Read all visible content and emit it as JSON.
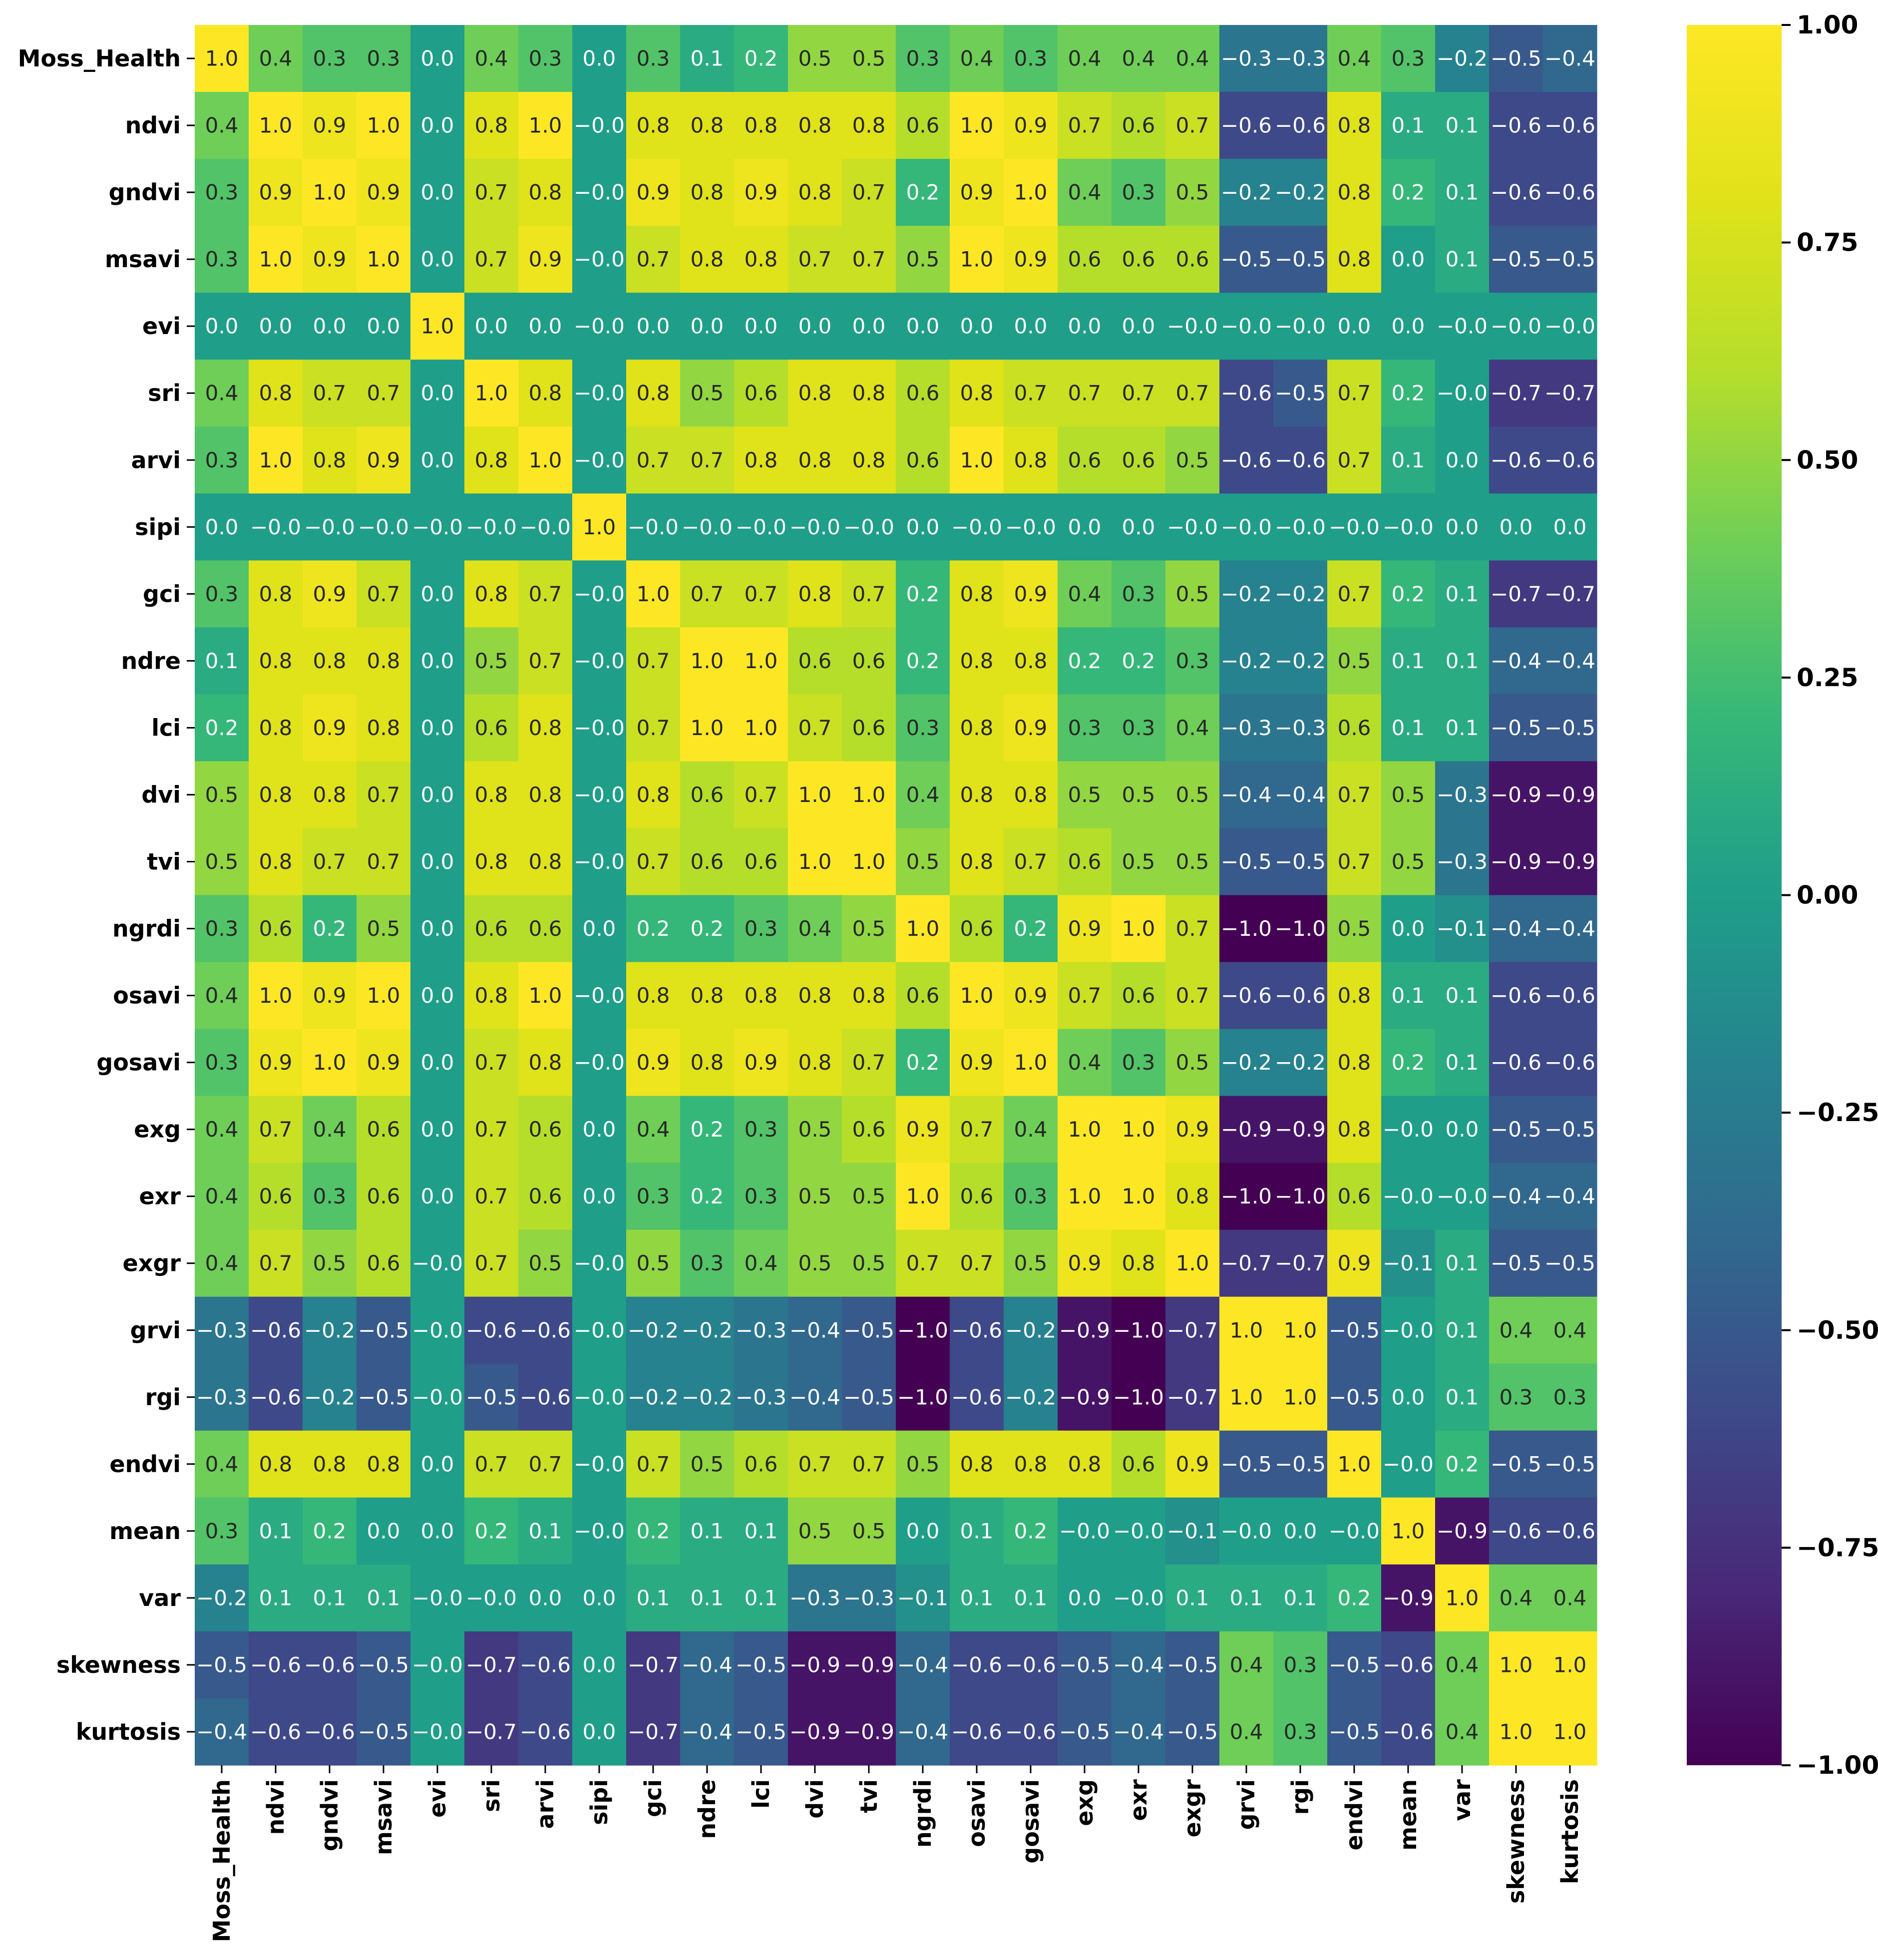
{
  "chart_data": {
    "type": "heatmap",
    "title": "",
    "colormap": "viridis",
    "vmin": -1.0,
    "vmax": 1.0,
    "labels": [
      "Moss_Health",
      "ndvi",
      "gndvi",
      "msavi",
      "evi",
      "sri",
      "arvi",
      "sipi",
      "gci",
      "ndre",
      "lci",
      "dvi",
      "tvi",
      "ngrdi",
      "osavi",
      "gosavi",
      "exg",
      "exr",
      "exgr",
      "grvi",
      "rgi",
      "endvi",
      "mean",
      "var",
      "skewness",
      "kurtosis"
    ],
    "values": [
      [
        1.0,
        0.4,
        0.3,
        0.3,
        0.0,
        0.4,
        0.3,
        0.0,
        0.3,
        0.1,
        0.2,
        0.5,
        0.5,
        0.3,
        0.4,
        0.3,
        0.4,
        0.4,
        0.4,
        -0.3,
        -0.3,
        0.4,
        0.3,
        -0.2,
        -0.5,
        -0.4
      ],
      [
        0.4,
        1.0,
        0.9,
        1.0,
        0.0,
        0.8,
        1.0,
        -0.0,
        0.8,
        0.8,
        0.8,
        0.8,
        0.8,
        0.6,
        1.0,
        0.9,
        0.7,
        0.6,
        0.7,
        -0.6,
        -0.6,
        0.8,
        0.1,
        0.1,
        -0.6,
        -0.6
      ],
      [
        0.3,
        0.9,
        1.0,
        0.9,
        0.0,
        0.7,
        0.8,
        -0.0,
        0.9,
        0.8,
        0.9,
        0.8,
        0.7,
        0.2,
        0.9,
        1.0,
        0.4,
        0.3,
        0.5,
        -0.2,
        -0.2,
        0.8,
        0.2,
        0.1,
        -0.6,
        -0.6
      ],
      [
        0.3,
        1.0,
        0.9,
        1.0,
        0.0,
        0.7,
        0.9,
        -0.0,
        0.7,
        0.8,
        0.8,
        0.7,
        0.7,
        0.5,
        1.0,
        0.9,
        0.6,
        0.6,
        0.6,
        -0.5,
        -0.5,
        0.8,
        0.0,
        0.1,
        -0.5,
        -0.5
      ],
      [
        0.0,
        0.0,
        0.0,
        0.0,
        1.0,
        0.0,
        0.0,
        -0.0,
        0.0,
        0.0,
        0.0,
        0.0,
        0.0,
        0.0,
        0.0,
        0.0,
        0.0,
        0.0,
        -0.0,
        -0.0,
        -0.0,
        0.0,
        0.0,
        -0.0,
        -0.0,
        -0.0
      ],
      [
        0.4,
        0.8,
        0.7,
        0.7,
        0.0,
        1.0,
        0.8,
        -0.0,
        0.8,
        0.5,
        0.6,
        0.8,
        0.8,
        0.6,
        0.8,
        0.7,
        0.7,
        0.7,
        0.7,
        -0.6,
        -0.5,
        0.7,
        0.2,
        -0.0,
        -0.7,
        -0.7
      ],
      [
        0.3,
        1.0,
        0.8,
        0.9,
        0.0,
        0.8,
        1.0,
        -0.0,
        0.7,
        0.7,
        0.8,
        0.8,
        0.8,
        0.6,
        1.0,
        0.8,
        0.6,
        0.6,
        0.5,
        -0.6,
        -0.6,
        0.7,
        0.1,
        0.0,
        -0.6,
        -0.6
      ],
      [
        0.0,
        -0.0,
        -0.0,
        -0.0,
        -0.0,
        -0.0,
        -0.0,
        1.0,
        -0.0,
        -0.0,
        -0.0,
        -0.0,
        -0.0,
        0.0,
        -0.0,
        -0.0,
        0.0,
        0.0,
        -0.0,
        -0.0,
        -0.0,
        -0.0,
        -0.0,
        0.0,
        0.0,
        0.0
      ],
      [
        0.3,
        0.8,
        0.9,
        0.7,
        0.0,
        0.8,
        0.7,
        -0.0,
        1.0,
        0.7,
        0.7,
        0.8,
        0.7,
        0.2,
        0.8,
        0.9,
        0.4,
        0.3,
        0.5,
        -0.2,
        -0.2,
        0.7,
        0.2,
        0.1,
        -0.7,
        -0.7
      ],
      [
        0.1,
        0.8,
        0.8,
        0.8,
        0.0,
        0.5,
        0.7,
        -0.0,
        0.7,
        1.0,
        1.0,
        0.6,
        0.6,
        0.2,
        0.8,
        0.8,
        0.2,
        0.2,
        0.3,
        -0.2,
        -0.2,
        0.5,
        0.1,
        0.1,
        -0.4,
        -0.4
      ],
      [
        0.2,
        0.8,
        0.9,
        0.8,
        0.0,
        0.6,
        0.8,
        -0.0,
        0.7,
        1.0,
        1.0,
        0.7,
        0.6,
        0.3,
        0.8,
        0.9,
        0.3,
        0.3,
        0.4,
        -0.3,
        -0.3,
        0.6,
        0.1,
        0.1,
        -0.5,
        -0.5
      ],
      [
        0.5,
        0.8,
        0.8,
        0.7,
        0.0,
        0.8,
        0.8,
        -0.0,
        0.8,
        0.6,
        0.7,
        1.0,
        1.0,
        0.4,
        0.8,
        0.8,
        0.5,
        0.5,
        0.5,
        -0.4,
        -0.4,
        0.7,
        0.5,
        -0.3,
        -0.9,
        -0.9
      ],
      [
        0.5,
        0.8,
        0.7,
        0.7,
        0.0,
        0.8,
        0.8,
        -0.0,
        0.7,
        0.6,
        0.6,
        1.0,
        1.0,
        0.5,
        0.8,
        0.7,
        0.6,
        0.5,
        0.5,
        -0.5,
        -0.5,
        0.7,
        0.5,
        -0.3,
        -0.9,
        -0.9
      ],
      [
        0.3,
        0.6,
        0.2,
        0.5,
        0.0,
        0.6,
        0.6,
        0.0,
        0.2,
        0.2,
        0.3,
        0.4,
        0.5,
        1.0,
        0.6,
        0.2,
        0.9,
        1.0,
        0.7,
        -1.0,
        -1.0,
        0.5,
        0.0,
        -0.1,
        -0.4,
        -0.4
      ],
      [
        0.4,
        1.0,
        0.9,
        1.0,
        0.0,
        0.8,
        1.0,
        -0.0,
        0.8,
        0.8,
        0.8,
        0.8,
        0.8,
        0.6,
        1.0,
        0.9,
        0.7,
        0.6,
        0.7,
        -0.6,
        -0.6,
        0.8,
        0.1,
        0.1,
        -0.6,
        -0.6
      ],
      [
        0.3,
        0.9,
        1.0,
        0.9,
        0.0,
        0.7,
        0.8,
        -0.0,
        0.9,
        0.8,
        0.9,
        0.8,
        0.7,
        0.2,
        0.9,
        1.0,
        0.4,
        0.3,
        0.5,
        -0.2,
        -0.2,
        0.8,
        0.2,
        0.1,
        -0.6,
        -0.6
      ],
      [
        0.4,
        0.7,
        0.4,
        0.6,
        0.0,
        0.7,
        0.6,
        0.0,
        0.4,
        0.2,
        0.3,
        0.5,
        0.6,
        0.9,
        0.7,
        0.4,
        1.0,
        1.0,
        0.9,
        -0.9,
        -0.9,
        0.8,
        -0.0,
        0.0,
        -0.5,
        -0.5
      ],
      [
        0.4,
        0.6,
        0.3,
        0.6,
        0.0,
        0.7,
        0.6,
        0.0,
        0.3,
        0.2,
        0.3,
        0.5,
        0.5,
        1.0,
        0.6,
        0.3,
        1.0,
        1.0,
        0.8,
        -1.0,
        -1.0,
        0.6,
        -0.0,
        -0.0,
        -0.4,
        -0.4
      ],
      [
        0.4,
        0.7,
        0.5,
        0.6,
        -0.0,
        0.7,
        0.5,
        -0.0,
        0.5,
        0.3,
        0.4,
        0.5,
        0.5,
        0.7,
        0.7,
        0.5,
        0.9,
        0.8,
        1.0,
        -0.7,
        -0.7,
        0.9,
        -0.1,
        0.1,
        -0.5,
        -0.5
      ],
      [
        -0.3,
        -0.6,
        -0.2,
        -0.5,
        -0.0,
        -0.6,
        -0.6,
        -0.0,
        -0.2,
        -0.2,
        -0.3,
        -0.4,
        -0.5,
        -1.0,
        -0.6,
        -0.2,
        -0.9,
        -1.0,
        -0.7,
        1.0,
        1.0,
        -0.5,
        -0.0,
        0.1,
        0.4,
        0.4
      ],
      [
        -0.3,
        -0.6,
        -0.2,
        -0.5,
        -0.0,
        -0.5,
        -0.6,
        -0.0,
        -0.2,
        -0.2,
        -0.3,
        -0.4,
        -0.5,
        -1.0,
        -0.6,
        -0.2,
        -0.9,
        -1.0,
        -0.7,
        1.0,
        1.0,
        -0.5,
        0.0,
        0.1,
        0.3,
        0.3
      ],
      [
        0.4,
        0.8,
        0.8,
        0.8,
        0.0,
        0.7,
        0.7,
        -0.0,
        0.7,
        0.5,
        0.6,
        0.7,
        0.7,
        0.5,
        0.8,
        0.8,
        0.8,
        0.6,
        0.9,
        -0.5,
        -0.5,
        1.0,
        -0.0,
        0.2,
        -0.5,
        -0.5
      ],
      [
        0.3,
        0.1,
        0.2,
        0.0,
        0.0,
        0.2,
        0.1,
        -0.0,
        0.2,
        0.1,
        0.1,
        0.5,
        0.5,
        0.0,
        0.1,
        0.2,
        -0.0,
        -0.0,
        -0.1,
        -0.0,
        0.0,
        -0.0,
        1.0,
        -0.9,
        -0.6,
        -0.6
      ],
      [
        -0.2,
        0.1,
        0.1,
        0.1,
        -0.0,
        -0.0,
        0.0,
        0.0,
        0.1,
        0.1,
        0.1,
        -0.3,
        -0.3,
        -0.1,
        0.1,
        0.1,
        0.0,
        -0.0,
        0.1,
        0.1,
        0.1,
        0.2,
        -0.9,
        1.0,
        0.4,
        0.4
      ],
      [
        -0.5,
        -0.6,
        -0.6,
        -0.5,
        -0.0,
        -0.7,
        -0.6,
        0.0,
        -0.7,
        -0.4,
        -0.5,
        -0.9,
        -0.9,
        -0.4,
        -0.6,
        -0.6,
        -0.5,
        -0.4,
        -0.5,
        0.4,
        0.3,
        -0.5,
        -0.6,
        0.4,
        1.0,
        1.0
      ],
      [
        -0.4,
        -0.6,
        -0.6,
        -0.5,
        -0.0,
        -0.7,
        -0.6,
        0.0,
        -0.7,
        -0.4,
        -0.5,
        -0.9,
        -0.9,
        -0.4,
        -0.6,
        -0.6,
        -0.5,
        -0.4,
        -0.5,
        0.4,
        0.3,
        -0.5,
        -0.6,
        0.4,
        1.0,
        1.0
      ]
    ],
    "colorbar_ticks": [
      "1.00",
      "0.75",
      "0.50",
      "0.25",
      "0.00",
      "−0.25",
      "−0.50",
      "−0.75",
      "−1.00"
    ],
    "colorbar_tick_values": [
      1.0,
      0.75,
      0.5,
      0.25,
      0.0,
      -0.25,
      -0.5,
      -0.75,
      -1.0
    ],
    "annotation_format": "0.1f"
  }
}
